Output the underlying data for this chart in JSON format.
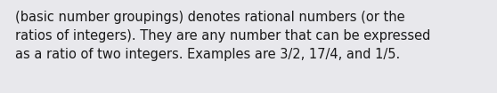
{
  "text": "(basic number groupings) denotes rational numbers (or the\nratios of integers). They are any number that can be expressed\nas a ratio of two integers. Examples are 3/2, 17/4, and 1/5.",
  "background_color": "#e8e8ec",
  "text_color": "#1a1a1a",
  "font_size": 10.5,
  "fig_width": 5.58,
  "fig_height": 1.05,
  "dpi": 100
}
